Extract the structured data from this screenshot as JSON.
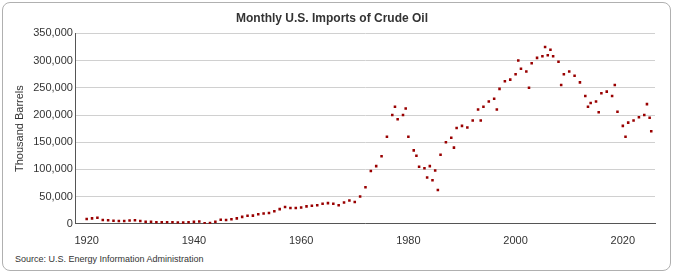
{
  "chart_data": {
    "type": "scatter",
    "title": "Monthly U.S. Imports of Crude Oil",
    "y_label": "Thousand Barrels",
    "source": "Source: U.S. Energy Information Administration",
    "x": [
      1920,
      1921,
      1922,
      1923,
      1924,
      1925,
      1926,
      1927,
      1928,
      1929,
      1930,
      1931,
      1932,
      1933,
      1934,
      1935,
      1936,
      1937,
      1938,
      1939,
      1940,
      1941,
      1942,
      1943,
      1944,
      1945,
      1946,
      1947,
      1948,
      1949,
      1950,
      1951,
      1952,
      1953,
      1954,
      1955,
      1956,
      1957,
      1958,
      1959,
      1960,
      1961,
      1962,
      1963,
      1964,
      1965,
      1966,
      1967,
      1968,
      1969,
      1970,
      1971,
      1972,
      1973,
      1974,
      1975,
      1976,
      1977,
      1977.5,
      1978,
      1979,
      1979.5,
      1980,
      1981,
      1981.5,
      1982,
      1983,
      1983.5,
      1984,
      1984.5,
      1985,
      1985.5,
      1986,
      1987,
      1988,
      1988.5,
      1989,
      1990,
      1991,
      1992,
      1993,
      1993.5,
      1994,
      1995,
      1996,
      1996.5,
      1997,
      1998,
      1999,
      2000,
      2000.5,
      2001,
      2002,
      2002.5,
      2003,
      2004,
      2005,
      2005.5,
      2006,
      2006.5,
      2007,
      2008,
      2008.5,
      2009,
      2010,
      2011,
      2012,
      2013,
      2013.5,
      2014,
      2015,
      2015.5,
      2016,
      2017,
      2018,
      2018.5,
      2019,
      2020,
      2020.5,
      2021,
      2022,
      2023,
      2024,
      2024.5,
      2025,
      2025.3
    ],
    "values": [
      9000,
      10000,
      11000,
      7000,
      6500,
      5500,
      5000,
      5200,
      6000,
      6500,
      5200,
      3900,
      3700,
      2800,
      3000,
      2700,
      2700,
      2300,
      2200,
      2800,
      3500,
      4200,
      1100,
      1200,
      3700,
      7500,
      7000,
      8300,
      10000,
      12700,
      14700,
      15000,
      17500,
      19000,
      20000,
      23000,
      27000,
      31000,
      29000,
      29000,
      30000,
      32000,
      33000,
      34000,
      37000,
      38000,
      37000,
      34000,
      39000,
      43000,
      40000,
      50000,
      67000,
      97000,
      106000,
      124000,
      160000,
      200000,
      215000,
      192000,
      200000,
      212000,
      160000,
      135000,
      125000,
      105000,
      102000,
      85000,
      106000,
      80000,
      98000,
      62000,
      127000,
      150000,
      158000,
      140000,
      176000,
      180000,
      177000,
      190000,
      210000,
      190000,
      215000,
      225000,
      230000,
      210000,
      248000,
      262000,
      265000,
      275000,
      300000,
      285000,
      280000,
      250000,
      295000,
      305000,
      308000,
      325000,
      310000,
      320000,
      308000,
      298000,
      255000,
      275000,
      280000,
      272000,
      260000,
      235000,
      215000,
      222000,
      225000,
      205000,
      240000,
      243000,
      235000,
      255000,
      206000,
      180000,
      160000,
      186000,
      190000,
      196000,
      200000,
      220000,
      195000,
      170000
    ],
    "color": "#990000",
    "marker": "square",
    "xlim": [
      1918,
      2026
    ],
    "xticks": [
      1920,
      1940,
      1960,
      1980,
      2000,
      2020
    ],
    "ylim": [
      0,
      350000
    ],
    "yticks": [
      0,
      {
        "value": 50000,
        "label": "50,000"
      },
      {
        "value": 100000,
        "label": "100,000"
      },
      {
        "value": 150000,
        "label": "150,000"
      },
      {
        "value": 200000,
        "label": "200,000"
      },
      {
        "value": 250000,
        "label": "250,000"
      },
      {
        "value": 300000,
        "label": "300,000"
      },
      {
        "value": 350000,
        "label": "350,000"
      }
    ],
    "grid": true
  }
}
